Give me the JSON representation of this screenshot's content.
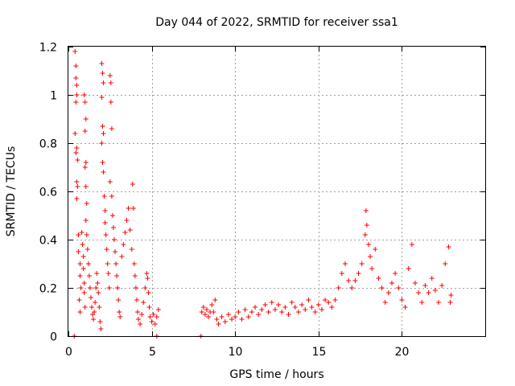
{
  "chart_data": {
    "type": "scatter",
    "title": "Day 044 of 2022, SRMTID for receiver ssa1",
    "xlabel": "GPS time / hours",
    "ylabel": "SRMTID / TECUs",
    "xlim": [
      0,
      25
    ],
    "ylim": [
      0,
      1.2
    ],
    "xticks": [
      0,
      5,
      10,
      15,
      20
    ],
    "yticks": [
      0,
      0.2,
      0.4,
      0.6,
      0.8,
      1,
      1.2
    ],
    "xtick_labels": [
      "0",
      "5",
      "10",
      "15",
      "20"
    ],
    "ytick_labels": [
      "0",
      "0.2",
      "0.4",
      "0.6",
      "0.8",
      "1",
      "1.2"
    ],
    "grid": true,
    "marker": "+",
    "series": [
      {
        "name": "SRMTID",
        "color": "#ff0000",
        "points": [
          [
            0.35,
            0.0
          ],
          [
            0.4,
            1.18
          ],
          [
            0.45,
            1.12
          ],
          [
            0.45,
            1.07
          ],
          [
            0.5,
            1.04
          ],
          [
            0.5,
            1.0
          ],
          [
            0.45,
            0.97
          ],
          [
            0.4,
            0.84
          ],
          [
            0.5,
            0.78
          ],
          [
            0.45,
            0.76
          ],
          [
            0.55,
            0.73
          ],
          [
            0.5,
            0.64
          ],
          [
            0.55,
            0.62
          ],
          [
            0.5,
            0.57
          ],
          [
            0.6,
            0.42
          ],
          [
            0.6,
            0.35
          ],
          [
            0.7,
            0.3
          ],
          [
            0.7,
            0.25
          ],
          [
            0.75,
            0.2
          ],
          [
            0.65,
            0.15
          ],
          [
            0.7,
            0.1
          ],
          [
            0.8,
            0.43
          ],
          [
            0.85,
            0.38
          ],
          [
            0.9,
            0.33
          ],
          [
            0.9,
            0.28
          ],
          [
            0.95,
            0.22
          ],
          [
            0.95,
            0.18
          ],
          [
            1.0,
            0.12
          ],
          [
            0.95,
            1.0
          ],
          [
            1.0,
            0.97
          ],
          [
            1.05,
            0.9
          ],
          [
            1.0,
            0.85
          ],
          [
            1.05,
            0.72
          ],
          [
            1.0,
            0.7
          ],
          [
            1.05,
            0.62
          ],
          [
            1.1,
            0.55
          ],
          [
            1.05,
            0.48
          ],
          [
            1.1,
            0.42
          ],
          [
            1.15,
            0.36
          ],
          [
            1.2,
            0.3
          ],
          [
            1.25,
            0.25
          ],
          [
            1.3,
            0.2
          ],
          [
            1.35,
            0.16
          ],
          [
            1.4,
            0.12
          ],
          [
            1.45,
            0.09
          ],
          [
            1.5,
            0.07
          ],
          [
            1.55,
            0.1
          ],
          [
            1.6,
            0.14
          ],
          [
            1.65,
            0.2
          ],
          [
            1.7,
            0.26
          ],
          [
            1.75,
            0.22
          ],
          [
            1.8,
            0.18
          ],
          [
            1.85,
            0.12
          ],
          [
            1.9,
            0.06
          ],
          [
            1.95,
            0.03
          ],
          [
            2.0,
            1.13
          ],
          [
            2.05,
            1.09
          ],
          [
            2.1,
            1.05
          ],
          [
            2.0,
            0.99
          ],
          [
            2.05,
            0.87
          ],
          [
            2.1,
            0.84
          ],
          [
            2.0,
            0.8
          ],
          [
            2.05,
            0.72
          ],
          [
            2.1,
            0.68
          ],
          [
            2.15,
            0.58
          ],
          [
            2.2,
            0.52
          ],
          [
            2.2,
            0.47
          ],
          [
            2.25,
            0.42
          ],
          [
            2.3,
            0.36
          ],
          [
            2.35,
            0.3
          ],
          [
            2.4,
            0.26
          ],
          [
            2.45,
            0.2
          ],
          [
            2.5,
            1.08
          ],
          [
            2.55,
            1.05
          ],
          [
            2.55,
            0.97
          ],
          [
            2.6,
            0.86
          ],
          [
            2.5,
            0.64
          ],
          [
            2.6,
            0.58
          ],
          [
            2.65,
            0.5
          ],
          [
            2.7,
            0.45
          ],
          [
            2.75,
            0.4
          ],
          [
            2.8,
            0.35
          ],
          [
            2.85,
            0.3
          ],
          [
            2.9,
            0.25
          ],
          [
            2.95,
            0.2
          ],
          [
            3.0,
            0.15
          ],
          [
            3.05,
            0.1
          ],
          [
            3.1,
            0.08
          ],
          [
            3.2,
            0.33
          ],
          [
            3.3,
            0.38
          ],
          [
            3.4,
            0.43
          ],
          [
            3.5,
            0.48
          ],
          [
            3.6,
            0.53
          ],
          [
            3.7,
            0.44
          ],
          [
            3.8,
            0.36
          ],
          [
            3.85,
            0.63
          ],
          [
            3.9,
            0.53
          ],
          [
            3.95,
            0.3
          ],
          [
            4.0,
            0.25
          ],
          [
            4.05,
            0.2
          ],
          [
            4.1,
            0.15
          ],
          [
            4.15,
            0.1
          ],
          [
            4.2,
            0.07
          ],
          [
            4.3,
            0.05
          ],
          [
            4.4,
            0.09
          ],
          [
            4.5,
            0.14
          ],
          [
            4.6,
            0.2
          ],
          [
            4.7,
            0.26
          ],
          [
            4.75,
            0.24
          ],
          [
            4.8,
            0.18
          ],
          [
            4.85,
            0.12
          ],
          [
            4.9,
            0.08
          ],
          [
            5.0,
            0.06
          ],
          [
            5.1,
            0.09
          ],
          [
            5.2,
            0.05
          ],
          [
            5.3,
            0.08
          ],
          [
            5.4,
            0.11
          ],
          [
            5.3,
            0.0
          ],
          [
            7.95,
            0.0
          ],
          [
            8.0,
            0.1
          ],
          [
            8.1,
            0.12
          ],
          [
            8.2,
            0.09
          ],
          [
            8.3,
            0.11
          ],
          [
            8.4,
            0.08
          ],
          [
            8.5,
            0.1
          ],
          [
            8.6,
            0.13
          ],
          [
            8.7,
            0.1
          ],
          [
            8.8,
            0.15
          ],
          [
            8.9,
            0.07
          ],
          [
            9.0,
            0.05
          ],
          [
            9.2,
            0.08
          ],
          [
            9.4,
            0.06
          ],
          [
            9.6,
            0.09
          ],
          [
            9.8,
            0.07
          ],
          [
            10.0,
            0.08
          ],
          [
            10.2,
            0.1
          ],
          [
            10.4,
            0.07
          ],
          [
            10.6,
            0.11
          ],
          [
            10.8,
            0.08
          ],
          [
            11.0,
            0.1
          ],
          [
            11.2,
            0.12
          ],
          [
            11.4,
            0.09
          ],
          [
            11.6,
            0.11
          ],
          [
            11.8,
            0.13
          ],
          [
            12.0,
            0.1
          ],
          [
            12.2,
            0.14
          ],
          [
            12.4,
            0.11
          ],
          [
            12.6,
            0.13
          ],
          [
            12.8,
            0.1
          ],
          [
            13.0,
            0.12
          ],
          [
            13.2,
            0.09
          ],
          [
            13.4,
            0.14
          ],
          [
            13.6,
            0.12
          ],
          [
            13.8,
            0.1
          ],
          [
            14.0,
            0.13
          ],
          [
            14.2,
            0.11
          ],
          [
            14.4,
            0.15
          ],
          [
            14.6,
            0.12
          ],
          [
            14.8,
            0.1
          ],
          [
            15.0,
            0.13
          ],
          [
            15.2,
            0.11
          ],
          [
            15.4,
            0.15
          ],
          [
            15.6,
            0.14
          ],
          [
            15.8,
            0.12
          ],
          [
            16.0,
            0.15
          ],
          [
            16.2,
            0.2
          ],
          [
            16.4,
            0.26
          ],
          [
            16.6,
            0.3
          ],
          [
            16.8,
            0.23
          ],
          [
            17.0,
            0.2
          ],
          [
            17.2,
            0.23
          ],
          [
            17.4,
            0.26
          ],
          [
            17.6,
            0.3
          ],
          [
            17.8,
            0.42
          ],
          [
            17.85,
            0.52
          ],
          [
            17.9,
            0.46
          ],
          [
            18.0,
            0.38
          ],
          [
            18.1,
            0.33
          ],
          [
            18.2,
            0.28
          ],
          [
            18.4,
            0.36
          ],
          [
            18.6,
            0.24
          ],
          [
            18.8,
            0.2
          ],
          [
            19.0,
            0.14
          ],
          [
            19.2,
            0.18
          ],
          [
            19.4,
            0.22
          ],
          [
            19.6,
            0.26
          ],
          [
            19.8,
            0.2
          ],
          [
            20.0,
            0.15
          ],
          [
            20.2,
            0.12
          ],
          [
            20.4,
            0.28
          ],
          [
            20.6,
            0.38
          ],
          [
            20.8,
            0.22
          ],
          [
            21.0,
            0.18
          ],
          [
            21.2,
            0.14
          ],
          [
            21.4,
            0.21
          ],
          [
            21.6,
            0.18
          ],
          [
            21.8,
            0.24
          ],
          [
            22.0,
            0.19
          ],
          [
            22.2,
            0.14
          ],
          [
            22.4,
            0.21
          ],
          [
            22.6,
            0.3
          ],
          [
            22.8,
            0.37
          ],
          [
            22.9,
            0.14
          ],
          [
            22.95,
            0.17
          ]
        ]
      }
    ]
  }
}
